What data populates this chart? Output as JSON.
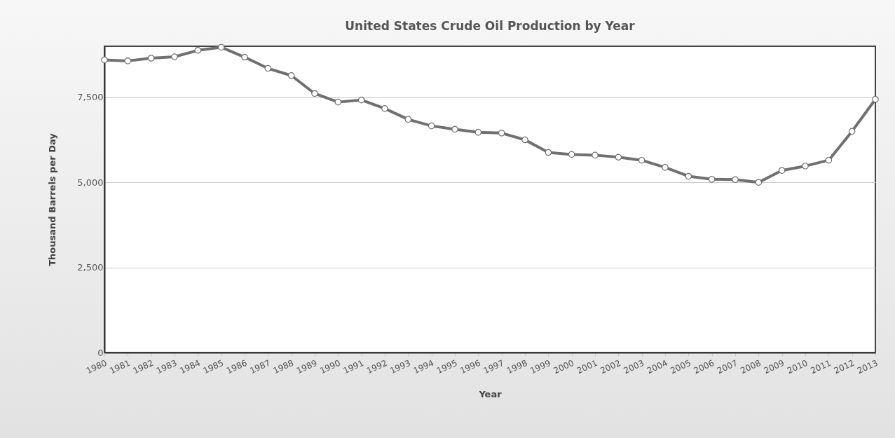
{
  "chart_data": {
    "type": "line",
    "title": "United States Crude Oil Production by Year",
    "xlabel": "Year",
    "ylabel": "Thousand Barrels per Day",
    "categories": [
      "1980",
      "1981",
      "1982",
      "1983",
      "1984",
      "1985",
      "1986",
      "1987",
      "1988",
      "1989",
      "1990",
      "1991",
      "1992",
      "1993",
      "1994",
      "1995",
      "1996",
      "1997",
      "1998",
      "1999",
      "2000",
      "2001",
      "2002",
      "2003",
      "2004",
      "2005",
      "2006",
      "2007",
      "2008",
      "2009",
      "2010",
      "2011",
      "2012",
      "2013"
    ],
    "series": [
      {
        "color": "#707070",
        "values": [
          8600,
          8570,
          8650,
          8690,
          8880,
          8970,
          8680,
          8350,
          8140,
          7610,
          7360,
          7420,
          7170,
          6850,
          6660,
          6560,
          6470,
          6450,
          6250,
          5880,
          5820,
          5800,
          5740,
          5650,
          5440,
          5180,
          5090,
          5080,
          5000,
          5350,
          5480,
          5650,
          6500,
          7440
        ]
      }
    ],
    "ylim": [
      0,
      9000
    ],
    "yticks": [
      0,
      {
        "value": 2500,
        "label": "2,500"
      },
      {
        "value": 5000,
        "label": "5,000"
      },
      {
        "value": 7500,
        "label": "7,500"
      }
    ],
    "grid": "y",
    "marker": "circle",
    "line_style": "solid",
    "legend": false
  }
}
